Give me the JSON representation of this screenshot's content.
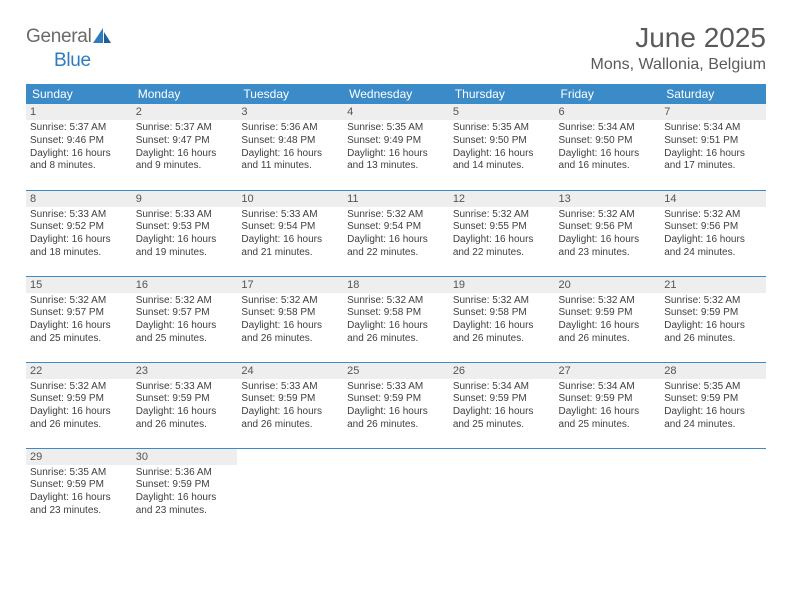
{
  "brand": {
    "word1": "General",
    "word2": "Blue"
  },
  "title": "June 2025",
  "location": "Mons, Wallonia, Belgium",
  "colors": {
    "header_bg": "#3b8bc8",
    "header_text": "#ffffff",
    "daynum_bg": "#eeeeee",
    "row_border": "#3b8bc8",
    "text": "#404040",
    "brand_gray": "#6a6a6a",
    "brand_blue": "#2f7bbf"
  },
  "day_names": [
    "Sunday",
    "Monday",
    "Tuesday",
    "Wednesday",
    "Thursday",
    "Friday",
    "Saturday"
  ],
  "weeks": [
    [
      {
        "n": "1",
        "sr": "5:37 AM",
        "ss": "9:46 PM",
        "dl": "16 hours and 8 minutes."
      },
      {
        "n": "2",
        "sr": "5:37 AM",
        "ss": "9:47 PM",
        "dl": "16 hours and 9 minutes."
      },
      {
        "n": "3",
        "sr": "5:36 AM",
        "ss": "9:48 PM",
        "dl": "16 hours and 11 minutes."
      },
      {
        "n": "4",
        "sr": "5:35 AM",
        "ss": "9:49 PM",
        "dl": "16 hours and 13 minutes."
      },
      {
        "n": "5",
        "sr": "5:35 AM",
        "ss": "9:50 PM",
        "dl": "16 hours and 14 minutes."
      },
      {
        "n": "6",
        "sr": "5:34 AM",
        "ss": "9:50 PM",
        "dl": "16 hours and 16 minutes."
      },
      {
        "n": "7",
        "sr": "5:34 AM",
        "ss": "9:51 PM",
        "dl": "16 hours and 17 minutes."
      }
    ],
    [
      {
        "n": "8",
        "sr": "5:33 AM",
        "ss": "9:52 PM",
        "dl": "16 hours and 18 minutes."
      },
      {
        "n": "9",
        "sr": "5:33 AM",
        "ss": "9:53 PM",
        "dl": "16 hours and 19 minutes."
      },
      {
        "n": "10",
        "sr": "5:33 AM",
        "ss": "9:54 PM",
        "dl": "16 hours and 21 minutes."
      },
      {
        "n": "11",
        "sr": "5:32 AM",
        "ss": "9:54 PM",
        "dl": "16 hours and 22 minutes."
      },
      {
        "n": "12",
        "sr": "5:32 AM",
        "ss": "9:55 PM",
        "dl": "16 hours and 22 minutes."
      },
      {
        "n": "13",
        "sr": "5:32 AM",
        "ss": "9:56 PM",
        "dl": "16 hours and 23 minutes."
      },
      {
        "n": "14",
        "sr": "5:32 AM",
        "ss": "9:56 PM",
        "dl": "16 hours and 24 minutes."
      }
    ],
    [
      {
        "n": "15",
        "sr": "5:32 AM",
        "ss": "9:57 PM",
        "dl": "16 hours and 25 minutes."
      },
      {
        "n": "16",
        "sr": "5:32 AM",
        "ss": "9:57 PM",
        "dl": "16 hours and 25 minutes."
      },
      {
        "n": "17",
        "sr": "5:32 AM",
        "ss": "9:58 PM",
        "dl": "16 hours and 26 minutes."
      },
      {
        "n": "18",
        "sr": "5:32 AM",
        "ss": "9:58 PM",
        "dl": "16 hours and 26 minutes."
      },
      {
        "n": "19",
        "sr": "5:32 AM",
        "ss": "9:58 PM",
        "dl": "16 hours and 26 minutes."
      },
      {
        "n": "20",
        "sr": "5:32 AM",
        "ss": "9:59 PM",
        "dl": "16 hours and 26 minutes."
      },
      {
        "n": "21",
        "sr": "5:32 AM",
        "ss": "9:59 PM",
        "dl": "16 hours and 26 minutes."
      }
    ],
    [
      {
        "n": "22",
        "sr": "5:32 AM",
        "ss": "9:59 PM",
        "dl": "16 hours and 26 minutes."
      },
      {
        "n": "23",
        "sr": "5:33 AM",
        "ss": "9:59 PM",
        "dl": "16 hours and 26 minutes."
      },
      {
        "n": "24",
        "sr": "5:33 AM",
        "ss": "9:59 PM",
        "dl": "16 hours and 26 minutes."
      },
      {
        "n": "25",
        "sr": "5:33 AM",
        "ss": "9:59 PM",
        "dl": "16 hours and 26 minutes."
      },
      {
        "n": "26",
        "sr": "5:34 AM",
        "ss": "9:59 PM",
        "dl": "16 hours and 25 minutes."
      },
      {
        "n": "27",
        "sr": "5:34 AM",
        "ss": "9:59 PM",
        "dl": "16 hours and 25 minutes."
      },
      {
        "n": "28",
        "sr": "5:35 AM",
        "ss": "9:59 PM",
        "dl": "16 hours and 24 minutes."
      }
    ],
    [
      {
        "n": "29",
        "sr": "5:35 AM",
        "ss": "9:59 PM",
        "dl": "16 hours and 23 minutes."
      },
      {
        "n": "30",
        "sr": "5:36 AM",
        "ss": "9:59 PM",
        "dl": "16 hours and 23 minutes."
      },
      null,
      null,
      null,
      null,
      null
    ]
  ],
  "labels": {
    "sunrise": "Sunrise:",
    "sunset": "Sunset:",
    "daylight": "Daylight:"
  }
}
